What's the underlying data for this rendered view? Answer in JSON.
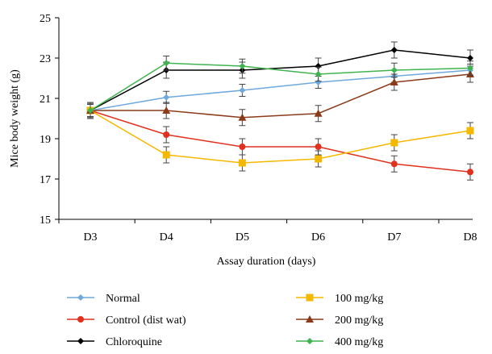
{
  "chart_data": {
    "type": "line",
    "xlabel": "Assay duration (days)",
    "ylabel": "Mice body weight (g)",
    "categories": [
      "D3",
      "D4",
      "D5",
      "D6",
      "D7",
      "D8"
    ],
    "ylim": [
      15,
      25
    ],
    "yticks": [
      15,
      17,
      19,
      21,
      23,
      25
    ],
    "grid": false,
    "error_bars": true,
    "legend_position": "bottom",
    "series": [
      {
        "name": "Normal",
        "color": "#6fa8dc",
        "marker": "diamond",
        "values": [
          20.4,
          21.05,
          21.4,
          21.8,
          22.1,
          22.4
        ],
        "errors": [
          0.3,
          0.3,
          0.3,
          0.3,
          0.3,
          0.3
        ]
      },
      {
        "name": "Control (dist wat)",
        "color": "#e0301e",
        "marker": "circle",
        "values": [
          20.4,
          19.2,
          18.6,
          18.6,
          17.75,
          17.35
        ],
        "errors": [
          0.4,
          0.4,
          0.4,
          0.4,
          0.4,
          0.4
        ]
      },
      {
        "name": "Chloroquine",
        "color": "#000000",
        "marker": "diamond",
        "values": [
          20.4,
          22.4,
          22.4,
          22.6,
          23.4,
          23.0
        ],
        "errors": [
          0.4,
          0.4,
          0.4,
          0.4,
          0.4,
          0.4
        ]
      },
      {
        "name": "100 mg/kg",
        "color": "#f5b800",
        "marker": "square",
        "values": [
          20.4,
          18.2,
          17.8,
          18.0,
          18.8,
          19.4
        ],
        "errors": [
          0.4,
          0.4,
          0.4,
          0.4,
          0.4,
          0.4
        ]
      },
      {
        "name": "200 mg/kg",
        "color": "#8b3a1a",
        "marker": "triangle",
        "values": [
          20.4,
          20.4,
          20.05,
          20.25,
          21.8,
          22.2
        ],
        "errors": [
          0.4,
          0.4,
          0.4,
          0.4,
          0.4,
          0.4
        ]
      },
      {
        "name": "400 mg/kg",
        "color": "#3fb34f",
        "marker": "diamond",
        "values": [
          20.4,
          22.75,
          22.6,
          22.2,
          22.4,
          22.5
        ],
        "errors": [
          0.35,
          0.35,
          0.35,
          0.35,
          0.35,
          0.35
        ]
      }
    ]
  }
}
